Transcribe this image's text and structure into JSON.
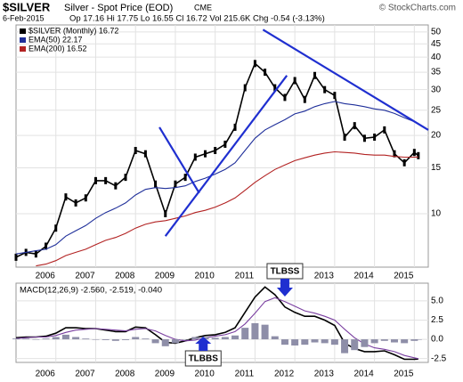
{
  "header": {
    "symbol": "$SILVER",
    "name": "Silver - Spot Price (EOD)",
    "exchange": "CME",
    "credit": "© StockCharts.com",
    "date": "6-Feb-2015",
    "quote": "Op 17.16 Hi 17.75 Lo 16.55 Cl 16.72 Vol 215.6K Chg -0.54 (-3.13%)"
  },
  "chart_data": [
    {
      "type": "line",
      "log_scale": true,
      "grid": true,
      "x": [
        2005,
        2005.25,
        2005.5,
        2005.75,
        2006,
        2006.25,
        2006.5,
        2006.75,
        2007,
        2007.25,
        2007.5,
        2007.75,
        2008,
        2008.25,
        2008.5,
        2008.75,
        2009,
        2009.25,
        2009.5,
        2009.75,
        2010,
        2010.25,
        2010.5,
        2010.75,
        2011,
        2011.25,
        2011.5,
        2011.75,
        2012,
        2012.25,
        2012.5,
        2012.75,
        2013,
        2013.25,
        2013.5,
        2013.75,
        2014,
        2014.25,
        2014.5,
        2014.75,
        2015,
        2015.1
      ],
      "xlim": [
        2005,
        2015.35
      ],
      "xticks": [
        2006,
        2007,
        2008,
        2009,
        2010,
        2011,
        2012,
        2013,
        2014,
        2015
      ],
      "ylim": [
        6.23,
        53.2
      ],
      "yticks": [
        10,
        15,
        20,
        25,
        30,
        35,
        40,
        45,
        50
      ],
      "series": [
        {
          "name": "$SILVER (Monthly) 16.72",
          "color": "#000000",
          "values": [
            6.8,
            7.1,
            7.0,
            7.5,
            8.8,
            11.6,
            11.0,
            11.5,
            13.4,
            13.4,
            12.8,
            13.8,
            17.5,
            17.0,
            13.0,
            10.0,
            13.0,
            13.8,
            16.5,
            17.0,
            17.5,
            18.5,
            21.5,
            30.5,
            37.8,
            35.0,
            30.5,
            28.0,
            32.5,
            27.5,
            34.0,
            30.0,
            28.5,
            19.7,
            21.8,
            19.5,
            19.7,
            21.0,
            17.0,
            15.7,
            17.2,
            16.72
          ]
        },
        {
          "name": "EMA(50) 22.17",
          "color": "#1f2f9a",
          "values": [
            7.0,
            7.1,
            7.2,
            7.3,
            7.6,
            8.2,
            8.6,
            9.0,
            9.6,
            10.1,
            10.5,
            11.0,
            11.8,
            12.4,
            12.6,
            12.5,
            12.6,
            12.8,
            13.3,
            13.7,
            14.2,
            14.8,
            15.7,
            17.5,
            19.5,
            21.0,
            22.0,
            23.0,
            24.2,
            24.8,
            25.8,
            26.5,
            27.0,
            26.5,
            26.2,
            25.8,
            25.3,
            25.0,
            24.3,
            23.4,
            22.6,
            22.17
          ]
        },
        {
          "name": "EMA(200) 16.52",
          "color": "#b22222",
          "values": [
            null,
            null,
            6.3,
            6.4,
            6.6,
            6.9,
            7.1,
            7.3,
            7.6,
            7.9,
            8.1,
            8.4,
            8.8,
            9.1,
            9.3,
            9.4,
            9.6,
            9.8,
            10.1,
            10.3,
            10.6,
            11.0,
            11.5,
            12.3,
            13.2,
            14.0,
            14.8,
            15.4,
            16.0,
            16.4,
            16.8,
            17.1,
            17.3,
            17.2,
            17.1,
            16.9,
            16.8,
            16.8,
            16.6,
            16.5,
            16.5,
            16.52
          ]
        }
      ],
      "trendlines": [
        {
          "x": [
            2008.6,
            2009.6
          ],
          "y": [
            21.5,
            12
          ]
        },
        {
          "x": [
            2008.75,
            2011.8
          ],
          "y": [
            8.2,
            34
          ]
        },
        {
          "x": [
            2011.2,
            2015.35
          ],
          "y": [
            51,
            21
          ]
        }
      ],
      "trendline_color": "#1f2fd0"
    },
    {
      "type": "line",
      "title": "MACD(12,26,9) -2.560, -2.519, -0.040",
      "grid": true,
      "x": [
        2005,
        2005.25,
        2005.5,
        2005.75,
        2006,
        2006.25,
        2006.5,
        2006.75,
        2007,
        2007.25,
        2007.5,
        2007.75,
        2008,
        2008.25,
        2008.5,
        2008.75,
        2009,
        2009.25,
        2009.5,
        2009.75,
        2010,
        2010.25,
        2010.5,
        2010.75,
        2011,
        2011.25,
        2011.5,
        2011.75,
        2012,
        2012.25,
        2012.5,
        2012.75,
        2013,
        2013.25,
        2013.5,
        2013.75,
        2014,
        2014.25,
        2014.5,
        2014.75,
        2015,
        2015.1
      ],
      "xlim": [
        2005,
        2015.35
      ],
      "xticks": [
        2006,
        2007,
        2008,
        2009,
        2010,
        2011,
        2012,
        2013,
        2014,
        2015
      ],
      "ylim": [
        -3,
        7.3
      ],
      "yticks": [
        {
          "value": 5,
          "label": "5.0"
        },
        {
          "value": 2.5,
          "label": "2.5"
        },
        {
          "value": 0,
          "label": "0.0"
        },
        {
          "value": -2.5,
          "label": "-2.5"
        }
      ],
      "series": [
        {
          "name": "MACD",
          "color": "#000000",
          "values": [
            0.2,
            0.3,
            0.3,
            0.4,
            0.8,
            1.5,
            1.5,
            1.4,
            1.4,
            1.2,
            1.0,
            1.0,
            1.6,
            1.5,
            0.6,
            -0.4,
            -0.5,
            -0.2,
            0.2,
            0.5,
            0.6,
            0.9,
            1.5,
            3.5,
            5.5,
            6.8,
            5.8,
            4.2,
            3.5,
            3.0,
            3.0,
            2.5,
            1.8,
            -0.5,
            -1.2,
            -1.6,
            -1.6,
            -1.5,
            -2.0,
            -2.6,
            -2.6,
            -2.56
          ]
        },
        {
          "name": "Signal",
          "color": "#7a3fa0",
          "values": [
            0.1,
            0.2,
            0.3,
            0.3,
            0.5,
            0.9,
            1.2,
            1.3,
            1.4,
            1.3,
            1.2,
            1.1,
            1.3,
            1.4,
            1.1,
            0.5,
            0.0,
            -0.2,
            -0.1,
            0.2,
            0.4,
            0.6,
            1.0,
            2.0,
            3.4,
            4.9,
            5.4,
            4.9,
            4.3,
            3.7,
            3.4,
            3.0,
            2.5,
            1.3,
            0.2,
            -0.6,
            -1.1,
            -1.3,
            -1.6,
            -2.1,
            -2.4,
            -2.519
          ]
        },
        {
          "name": "Histogram",
          "color": "#8e8ea8",
          "values": [
            0.1,
            0.1,
            0.0,
            0.1,
            0.3,
            0.6,
            0.3,
            0.1,
            0.0,
            -0.1,
            -0.2,
            -0.1,
            0.3,
            0.1,
            -0.5,
            -0.9,
            -0.5,
            0.0,
            0.3,
            0.3,
            0.2,
            0.3,
            0.5,
            1.5,
            2.1,
            1.9,
            0.4,
            -0.7,
            -0.8,
            -0.7,
            -0.4,
            -0.5,
            -0.7,
            -1.8,
            -1.4,
            -1.0,
            -0.5,
            -0.2,
            -0.4,
            -0.5,
            -0.2,
            -0.04
          ]
        }
      ],
      "annotations": [
        {
          "text": "TLBSS",
          "x": 2011.75
        },
        {
          "text": "TLBBS",
          "x": 2009.7
        }
      ]
    }
  ]
}
